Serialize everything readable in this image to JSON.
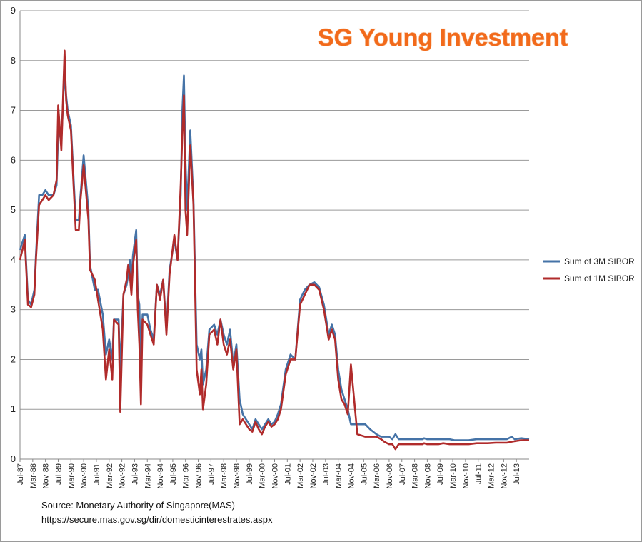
{
  "watermark": "SG Young Investment",
  "source": {
    "line1": "Source: Monetary  Authority of Singapore(MAS)",
    "line2": "https://secure.mas.gov.sg/dir/domesticinterestrates.aspx"
  },
  "chart_data": {
    "type": "line",
    "title": "",
    "xlabel": "",
    "ylabel": "",
    "ylim": [
      0,
      9
    ],
    "y_ticks": [
      0,
      1,
      2,
      3,
      4,
      5,
      6,
      7,
      8,
      9
    ],
    "x_start": "1987-07",
    "x_end": "2014-03",
    "x_tick_labels": [
      "Jul-87",
      "Mar-88",
      "Nov-88",
      "Jul-89",
      "Mar-90",
      "Nov-90",
      "Jul-91",
      "Mar-92",
      "Nov-92",
      "Jul-93",
      "Mar-94",
      "Nov-94",
      "Jul-95",
      "Mar-96",
      "Nov-96",
      "Jul-97",
      "Mar-98",
      "Nov-98",
      "Jul-99",
      "Mar-00",
      "Nov-00",
      "Jul-01",
      "Mar-02",
      "Nov-02",
      "Jul-03",
      "Mar-04",
      "Nov-04",
      "Jul-05",
      "Mar-06",
      "Nov-06",
      "Jul-07",
      "Mar-08",
      "Nov-08",
      "Jul-09",
      "Mar-10",
      "Nov-10",
      "Jul-11",
      "Mar-12",
      "Nov-12",
      "Jul-13"
    ],
    "grid": true,
    "legend_position": "right",
    "series": [
      {
        "name": "Sum of 3M SIBOR",
        "color": "#4573a7",
        "points": [
          [
            "1987-07",
            4.2
          ],
          [
            "1987-10",
            4.5
          ],
          [
            "1987-12",
            3.2
          ],
          [
            "1988-02",
            3.1
          ],
          [
            "1988-04",
            3.4
          ],
          [
            "1988-05",
            4.1
          ],
          [
            "1988-07",
            5.3
          ],
          [
            "1988-09",
            5.3
          ],
          [
            "1988-11",
            5.4
          ],
          [
            "1989-01",
            5.3
          ],
          [
            "1989-04",
            5.3
          ],
          [
            "1989-06",
            5.5
          ],
          [
            "1989-07",
            6.6
          ],
          [
            "1989-09",
            6.4
          ],
          [
            "1989-11",
            7.8
          ],
          [
            "1989-12",
            7.3
          ],
          [
            "1990-01",
            7.0
          ],
          [
            "1990-03",
            6.7
          ],
          [
            "1990-06",
            4.8
          ],
          [
            "1990-08",
            4.8
          ],
          [
            "1990-09",
            5.3
          ],
          [
            "1990-11",
            6.1
          ],
          [
            "1991-02",
            5.0
          ],
          [
            "1991-03",
            3.9
          ],
          [
            "1991-06",
            3.4
          ],
          [
            "1991-08",
            3.4
          ],
          [
            "1991-11",
            2.9
          ],
          [
            "1992-01",
            2.1
          ],
          [
            "1992-03",
            2.4
          ],
          [
            "1992-05",
            2.0
          ],
          [
            "1992-06",
            2.8
          ],
          [
            "1992-09",
            2.8
          ],
          [
            "1992-10",
            1.8
          ],
          [
            "1992-12",
            3.3
          ],
          [
            "1993-02",
            3.5
          ],
          [
            "1993-03",
            3.7
          ],
          [
            "1993-04",
            4.0
          ],
          [
            "1993-05",
            3.6
          ],
          [
            "1993-06",
            4.1
          ],
          [
            "1993-08",
            4.6
          ],
          [
            "1993-09",
            3.3
          ],
          [
            "1993-10",
            3.1
          ],
          [
            "1993-11",
            1.5
          ],
          [
            "1993-12",
            2.9
          ],
          [
            "1994-03",
            2.9
          ],
          [
            "1994-05",
            2.6
          ],
          [
            "1994-07",
            2.4
          ],
          [
            "1994-09",
            3.5
          ],
          [
            "1994-11",
            3.3
          ],
          [
            "1995-01",
            3.6
          ],
          [
            "1995-03",
            2.6
          ],
          [
            "1995-05",
            3.8
          ],
          [
            "1995-08",
            4.4
          ],
          [
            "1995-10",
            4.0
          ],
          [
            "1995-12",
            5.3
          ],
          [
            "1996-01",
            7.0
          ],
          [
            "1996-02",
            7.7
          ],
          [
            "1996-03",
            6.0
          ],
          [
            "1996-04",
            5.0
          ],
          [
            "1996-06",
            6.6
          ],
          [
            "1996-08",
            5.2
          ],
          [
            "1996-10",
            2.3
          ],
          [
            "1996-12",
            2.0
          ],
          [
            "1997-01",
            2.2
          ],
          [
            "1997-02",
            1.5
          ],
          [
            "1997-04",
            1.8
          ],
          [
            "1997-06",
            2.6
          ],
          [
            "1997-09",
            2.7
          ],
          [
            "1997-11",
            2.5
          ],
          [
            "1998-01",
            2.8
          ],
          [
            "1998-03",
            2.5
          ],
          [
            "1998-05",
            2.3
          ],
          [
            "1998-07",
            2.6
          ],
          [
            "1998-09",
            1.9
          ],
          [
            "1998-11",
            2.3
          ],
          [
            "1999-01",
            1.2
          ],
          [
            "1999-03",
            0.9
          ],
          [
            "1999-05",
            0.8
          ],
          [
            "1999-07",
            0.7
          ],
          [
            "1999-09",
            0.6
          ],
          [
            "1999-11",
            0.8
          ],
          [
            "2000-01",
            0.7
          ],
          [
            "2000-03",
            0.6
          ],
          [
            "2000-05",
            0.7
          ],
          [
            "2000-07",
            0.8
          ],
          [
            "2000-09",
            0.7
          ],
          [
            "2000-11",
            0.75
          ],
          [
            "2001-01",
            0.9
          ],
          [
            "2001-03",
            1.1
          ],
          [
            "2001-06",
            1.8
          ],
          [
            "2001-09",
            2.1
          ],
          [
            "2001-12",
            2.0
          ],
          [
            "2002-03",
            3.2
          ],
          [
            "2002-06",
            3.4
          ],
          [
            "2002-09",
            3.5
          ],
          [
            "2002-12",
            3.55
          ],
          [
            "2003-03",
            3.45
          ],
          [
            "2003-06",
            3.1
          ],
          [
            "2003-09",
            2.5
          ],
          [
            "2003-11",
            2.7
          ],
          [
            "2004-01",
            2.5
          ],
          [
            "2004-03",
            1.8
          ],
          [
            "2004-05",
            1.4
          ],
          [
            "2004-07",
            1.2
          ],
          [
            "2004-09",
            1.0
          ],
          [
            "2004-11",
            0.7
          ],
          [
            "2005-03",
            0.7
          ],
          [
            "2005-08",
            0.7
          ],
          [
            "2005-11",
            0.6
          ],
          [
            "2006-03",
            0.5
          ],
          [
            "2006-06",
            0.45
          ],
          [
            "2006-08",
            0.45
          ],
          [
            "2006-11",
            0.45
          ],
          [
            "2007-01",
            0.4
          ],
          [
            "2007-03",
            0.5
          ],
          [
            "2007-05",
            0.4
          ],
          [
            "2007-12",
            0.4
          ],
          [
            "2008-06",
            0.4
          ],
          [
            "2008-08",
            0.4
          ],
          [
            "2008-09",
            0.42
          ],
          [
            "2008-11",
            0.4
          ],
          [
            "2009-02",
            0.4
          ],
          [
            "2009-06",
            0.4
          ],
          [
            "2009-09",
            0.4
          ],
          [
            "2010-01",
            0.4
          ],
          [
            "2010-04",
            0.38
          ],
          [
            "2010-08",
            0.38
          ],
          [
            "2011-01",
            0.38
          ],
          [
            "2011-06",
            0.4
          ],
          [
            "2012-01",
            0.4
          ],
          [
            "2012-06",
            0.4
          ],
          [
            "2013-01",
            0.4
          ],
          [
            "2013-04",
            0.45
          ],
          [
            "2013-06",
            0.4
          ],
          [
            "2013-10",
            0.42
          ],
          [
            "2014-03",
            0.4
          ]
        ]
      },
      {
        "name": "Sum of 1M SIBOR",
        "color": "#b02b2b",
        "points": [
          [
            "1987-07",
            4.0
          ],
          [
            "1987-10",
            4.4
          ],
          [
            "1987-12",
            3.1
          ],
          [
            "1988-02",
            3.05
          ],
          [
            "1988-04",
            3.3
          ],
          [
            "1988-05",
            4.0
          ],
          [
            "1988-07",
            5.1
          ],
          [
            "1988-09",
            5.2
          ],
          [
            "1988-11",
            5.3
          ],
          [
            "1989-01",
            5.2
          ],
          [
            "1989-04",
            5.3
          ],
          [
            "1989-06",
            5.6
          ],
          [
            "1989-07",
            7.1
          ],
          [
            "1989-09",
            6.2
          ],
          [
            "1989-11",
            8.2
          ],
          [
            "1989-12",
            7.2
          ],
          [
            "1990-01",
            6.9
          ],
          [
            "1990-03",
            6.6
          ],
          [
            "1990-06",
            4.6
          ],
          [
            "1990-08",
            4.6
          ],
          [
            "1990-09",
            5.2
          ],
          [
            "1990-11",
            5.9
          ],
          [
            "1991-02",
            4.8
          ],
          [
            "1991-03",
            3.8
          ],
          [
            "1991-06",
            3.6
          ],
          [
            "1991-08",
            3.2
          ],
          [
            "1991-11",
            2.6
          ],
          [
            "1992-01",
            1.6
          ],
          [
            "1992-03",
            2.2
          ],
          [
            "1992-05",
            1.6
          ],
          [
            "1992-06",
            2.8
          ],
          [
            "1992-09",
            2.7
          ],
          [
            "1992-10",
            0.95
          ],
          [
            "1992-12",
            3.3
          ],
          [
            "1993-02",
            3.6
          ],
          [
            "1993-03",
            3.9
          ],
          [
            "1993-04",
            3.7
          ],
          [
            "1993-05",
            3.3
          ],
          [
            "1993-06",
            3.9
          ],
          [
            "1993-08",
            4.4
          ],
          [
            "1993-09",
            3.0
          ],
          [
            "1993-10",
            2.3
          ],
          [
            "1993-11",
            1.1
          ],
          [
            "1993-12",
            2.8
          ],
          [
            "1994-03",
            2.7
          ],
          [
            "1994-05",
            2.5
          ],
          [
            "1994-07",
            2.3
          ],
          [
            "1994-09",
            3.5
          ],
          [
            "1994-11",
            3.2
          ],
          [
            "1995-01",
            3.6
          ],
          [
            "1995-03",
            2.5
          ],
          [
            "1995-05",
            3.7
          ],
          [
            "1995-08",
            4.5
          ],
          [
            "1995-10",
            4.0
          ],
          [
            "1995-12",
            5.5
          ],
          [
            "1996-01",
            6.5
          ],
          [
            "1996-02",
            7.3
          ],
          [
            "1996-03",
            5.0
          ],
          [
            "1996-04",
            4.5
          ],
          [
            "1996-06",
            6.3
          ],
          [
            "1996-08",
            5.1
          ],
          [
            "1996-10",
            1.8
          ],
          [
            "1996-12",
            1.3
          ],
          [
            "1997-01",
            1.8
          ],
          [
            "1997-02",
            1.0
          ],
          [
            "1997-04",
            1.5
          ],
          [
            "1997-06",
            2.5
          ],
          [
            "1997-09",
            2.6
          ],
          [
            "1997-11",
            2.3
          ],
          [
            "1998-01",
            2.8
          ],
          [
            "1998-03",
            2.3
          ],
          [
            "1998-05",
            2.1
          ],
          [
            "1998-07",
            2.4
          ],
          [
            "1998-09",
            1.8
          ],
          [
            "1998-11",
            2.2
          ],
          [
            "1999-01",
            0.7
          ],
          [
            "1999-03",
            0.8
          ],
          [
            "1999-05",
            0.7
          ],
          [
            "1999-07",
            0.6
          ],
          [
            "1999-09",
            0.55
          ],
          [
            "1999-11",
            0.75
          ],
          [
            "2000-01",
            0.6
          ],
          [
            "2000-03",
            0.5
          ],
          [
            "2000-05",
            0.65
          ],
          [
            "2000-07",
            0.75
          ],
          [
            "2000-09",
            0.65
          ],
          [
            "2000-11",
            0.7
          ],
          [
            "2001-01",
            0.8
          ],
          [
            "2001-03",
            1.0
          ],
          [
            "2001-06",
            1.7
          ],
          [
            "2001-09",
            2.0
          ],
          [
            "2001-12",
            2.0
          ],
          [
            "2002-03",
            3.1
          ],
          [
            "2002-06",
            3.3
          ],
          [
            "2002-09",
            3.5
          ],
          [
            "2002-12",
            3.5
          ],
          [
            "2003-03",
            3.4
          ],
          [
            "2003-06",
            3.0
          ],
          [
            "2003-09",
            2.4
          ],
          [
            "2003-11",
            2.6
          ],
          [
            "2004-01",
            2.4
          ],
          [
            "2004-03",
            1.6
          ],
          [
            "2004-05",
            1.2
          ],
          [
            "2004-07",
            1.1
          ],
          [
            "2004-09",
            0.9
          ],
          [
            "2004-11",
            1.9
          ],
          [
            "2005-03",
            0.5
          ],
          [
            "2005-08",
            0.45
          ],
          [
            "2005-11",
            0.45
          ],
          [
            "2006-03",
            0.45
          ],
          [
            "2006-06",
            0.4
          ],
          [
            "2006-08",
            0.35
          ],
          [
            "2006-11",
            0.3
          ],
          [
            "2007-01",
            0.3
          ],
          [
            "2007-03",
            0.2
          ],
          [
            "2007-05",
            0.3
          ],
          [
            "2007-12",
            0.3
          ],
          [
            "2008-06",
            0.3
          ],
          [
            "2008-08",
            0.3
          ],
          [
            "2008-09",
            0.32
          ],
          [
            "2008-11",
            0.3
          ],
          [
            "2009-02",
            0.3
          ],
          [
            "2009-06",
            0.3
          ],
          [
            "2009-09",
            0.32
          ],
          [
            "2010-01",
            0.3
          ],
          [
            "2010-04",
            0.3
          ],
          [
            "2010-08",
            0.3
          ],
          [
            "2011-01",
            0.3
          ],
          [
            "2011-06",
            0.32
          ],
          [
            "2012-01",
            0.32
          ],
          [
            "2012-06",
            0.33
          ],
          [
            "2013-01",
            0.33
          ],
          [
            "2013-04",
            0.35
          ],
          [
            "2013-06",
            0.36
          ],
          [
            "2013-10",
            0.38
          ],
          [
            "2014-03",
            0.38
          ]
        ]
      }
    ]
  }
}
